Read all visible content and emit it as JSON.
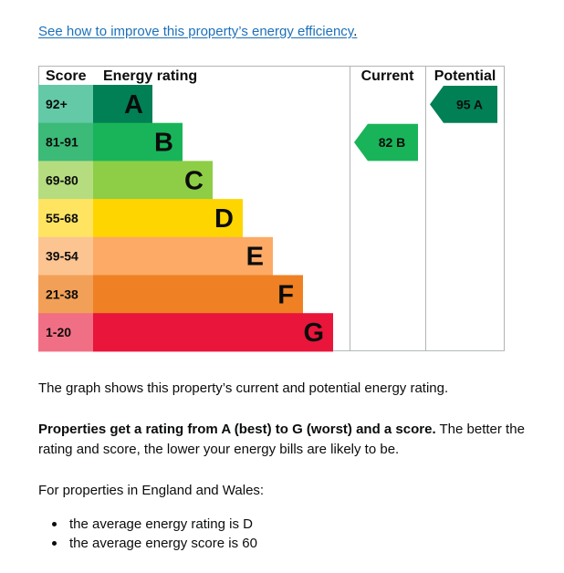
{
  "link": {
    "text": "See how to improve this property’s energy efficiency",
    "trail": "."
  },
  "chart_data": {
    "type": "bar",
    "headers": {
      "score": "Score",
      "rating": "Energy rating",
      "current": "Current",
      "potential": "Potential"
    },
    "bands": [
      {
        "letter": "A",
        "range": "92+",
        "color": "#008054",
        "label_bg": "#63c9a6"
      },
      {
        "letter": "B",
        "range": "81-91",
        "color": "#19b459",
        "label_bg": "#3bba78"
      },
      {
        "letter": "C",
        "range": "69-80",
        "color": "#8dce46",
        "label_bg": "#b5dd80"
      },
      {
        "letter": "D",
        "range": "55-68",
        "color": "#ffd500",
        "label_bg": "#ffe462"
      },
      {
        "letter": "E",
        "range": "39-54",
        "color": "#fcaa65",
        "label_bg": "#fcc491"
      },
      {
        "letter": "F",
        "range": "21-38",
        "color": "#ef8023",
        "label_bg": "#f2a057"
      },
      {
        "letter": "G",
        "range": "1-20",
        "color": "#e9153b",
        "label_bg": "#f16f85"
      }
    ],
    "current": {
      "score": 82,
      "letter": "B",
      "label": "82  B",
      "color": "#19b459"
    },
    "potential": {
      "score": 95,
      "letter": "A",
      "label": "95  A",
      "color": "#008054"
    }
  },
  "text": {
    "p1": "The graph shows this property’s current and potential energy rating.",
    "p2_bold": "Properties get a rating from A (best) to G (worst) and a score.",
    "p2_rest": " The better the rating and score, the lower your energy bills are likely to be.",
    "p3": "For properties in England and Wales:",
    "bullets": [
      "the average energy rating is D",
      "the average energy score is 60"
    ]
  }
}
